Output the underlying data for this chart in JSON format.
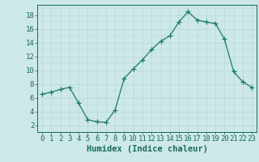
{
  "x": [
    0,
    1,
    2,
    3,
    4,
    5,
    6,
    7,
    8,
    9,
    10,
    11,
    12,
    13,
    14,
    15,
    16,
    17,
    18,
    19,
    20,
    21,
    22,
    23
  ],
  "y": [
    6.5,
    6.8,
    7.2,
    7.5,
    5.2,
    2.8,
    2.5,
    2.4,
    4.2,
    8.8,
    10.2,
    11.5,
    13.0,
    14.2,
    15.0,
    17.0,
    18.5,
    17.3,
    17.0,
    16.8,
    14.5,
    9.8,
    8.3,
    7.5
  ],
  "line_color": "#1a7a6a",
  "marker": "+",
  "marker_size": 4,
  "marker_color": "#1a7a6a",
  "bg_color": "#cde8e8",
  "grid_color": "#b8d8d8",
  "xlabel": "Humidex (Indice chaleur)",
  "xlim": [
    -0.5,
    23.5
  ],
  "ylim": [
    1.0,
    19.5
  ],
  "yticks": [
    2,
    4,
    6,
    8,
    10,
    12,
    14,
    16,
    18
  ],
  "xticks": [
    0,
    1,
    2,
    3,
    4,
    5,
    6,
    7,
    8,
    9,
    10,
    11,
    12,
    13,
    14,
    15,
    16,
    17,
    18,
    19,
    20,
    21,
    22,
    23
  ],
  "tick_color": "#1a6a5a",
  "label_color": "#1a6a5a",
  "tick_font_size": 6.5,
  "xlabel_font_size": 7.5
}
